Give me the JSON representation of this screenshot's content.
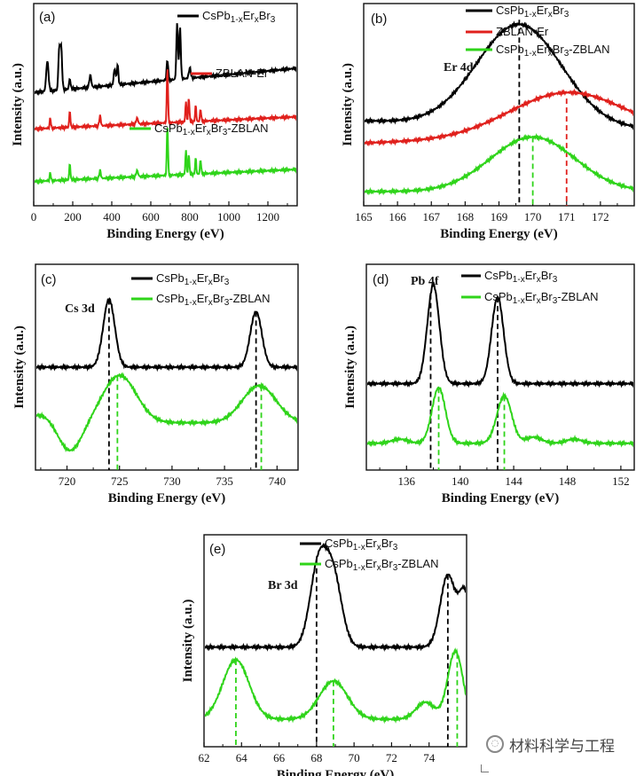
{
  "chart_data": [
    {
      "id": "a",
      "type": "line",
      "panel_label": "(a)",
      "xlabel": "Binding Energy (eV)",
      "ylabel": "Intensity (a.u.)",
      "xlim": [
        0,
        1350
      ],
      "ylim": [
        0,
        1
      ],
      "xticks": [
        0,
        200,
        400,
        600,
        800,
        1000,
        1200
      ],
      "legend_position": "inline",
      "series": [
        {
          "name": "CsPb1-xErxBr3",
          "color": "#000000",
          "baseline": 0.56,
          "rise": 0.12,
          "peaks": [
            [
              70,
              0.15,
              6
            ],
            [
              130,
              0.18,
              4
            ],
            [
              140,
              0.22,
              5
            ],
            [
              185,
              0.05,
              4
            ],
            [
              290,
              0.06,
              5
            ],
            [
              415,
              0.08,
              5
            ],
            [
              430,
              0.1,
              4
            ],
            [
              685,
              0.1,
              4
            ],
            [
              735,
              0.28,
              4
            ],
            [
              750,
              0.25,
              4
            ],
            [
              800,
              0.05,
              5
            ]
          ]
        },
        {
          "name": "ZBLAN-Er",
          "color": "#e0201c",
          "baseline": 0.38,
          "rise": 0.06,
          "peaks": [
            [
              85,
              0.05,
              3
            ],
            [
              185,
              0.08,
              3
            ],
            [
              340,
              0.05,
              4
            ],
            [
              530,
              0.03,
              5
            ],
            [
              685,
              0.28,
              3
            ],
            [
              780,
              0.1,
              3
            ],
            [
              795,
              0.12,
              3
            ],
            [
              830,
              0.08,
              3
            ],
            [
              855,
              0.06,
              3
            ]
          ]
        },
        {
          "name": "CsPb1-xErxBr3-ZBLAN",
          "color": "#2fd41a",
          "baseline": 0.12,
          "rise": 0.06,
          "peaks": [
            [
              85,
              0.04,
              3
            ],
            [
              185,
              0.08,
              3
            ],
            [
              340,
              0.04,
              4
            ],
            [
              530,
              0.03,
              5
            ],
            [
              685,
              0.25,
              3
            ],
            [
              780,
              0.12,
              3
            ],
            [
              795,
              0.1,
              3
            ],
            [
              830,
              0.08,
              3
            ],
            [
              855,
              0.07,
              3
            ]
          ]
        }
      ]
    },
    {
      "id": "b",
      "type": "line",
      "panel_label": "(b)",
      "xlabel": "Binding Energy (eV)",
      "ylabel": "Intensity (a.u.)",
      "xlim": [
        165,
        173
      ],
      "ylim": [
        0,
        1
      ],
      "xticks": [
        165,
        166,
        167,
        168,
        169,
        170,
        171,
        172
      ],
      "annotations": [
        {
          "text": "Er 4d"
        }
      ],
      "legend_position": "top-right",
      "series": [
        {
          "name": "CsPb1-xErxBr3",
          "color": "#000000",
          "baseline": 0.42,
          "rise": -0.04,
          "peaks": [
            [
              169.6,
              0.5,
              1.25
            ]
          ],
          "marker_x": 169.6
        },
        {
          "name": "ZBLAN-Er",
          "color": "#e0201c",
          "baseline": 0.31,
          "rise": 0.04,
          "peaks": [
            [
              171.0,
              0.22,
              1.7
            ]
          ],
          "marker_x": 171.0
        },
        {
          "name": "CsPb1-xErxBr3-ZBLAN",
          "color": "#2fd41a",
          "baseline": 0.07,
          "rise": 0.0,
          "peaks": [
            [
              170.0,
              0.27,
              1.25
            ]
          ],
          "marker_x": 170.0
        }
      ]
    },
    {
      "id": "c",
      "type": "line",
      "panel_label": "(c)",
      "xlabel": "Binding Energy (eV)",
      "ylabel": "Intensity (a.u.)",
      "xlim": [
        717,
        742
      ],
      "ylim": [
        0,
        1
      ],
      "xticks": [
        720,
        725,
        730,
        735,
        740
      ],
      "annotations": [
        {
          "text": "Cs 3d"
        }
      ],
      "legend_position": "top-right",
      "series": [
        {
          "name": "CsPb1-xErxBr3",
          "color": "#000000",
          "baseline": 0.5,
          "rise": 0.0,
          "peaks": [
            [
              724.0,
              0.33,
              0.55
            ],
            [
              738.0,
              0.27,
              0.55
            ]
          ],
          "marker_x": [
            724.0,
            738.0
          ]
        },
        {
          "name": "CsPb1-xErxBr3-ZBLAN",
          "color": "#2fd41a",
          "baseline": 0.23,
          "rise": 0.0,
          "peaks": [
            [
              725.0,
              0.23,
              1.6
            ],
            [
              738.3,
              0.18,
              1.6
            ],
            [
              720.3,
              -0.14,
              1.1
            ],
            [
              717.5,
              0.04,
              1.2
            ]
          ],
          "marker_x": [
            724.8,
            738.5
          ]
        }
      ]
    },
    {
      "id": "d",
      "type": "line",
      "panel_label": "(d)",
      "xlabel": "Binding Energy (eV)",
      "ylabel": "Intensity (a.u.)",
      "xlim": [
        133,
        153
      ],
      "ylim": [
        0,
        1
      ],
      "xticks": [
        136,
        140,
        144,
        148,
        152
      ],
      "annotations": [
        {
          "text": "Pb 4f"
        }
      ],
      "legend_position": "top-right",
      "series": [
        {
          "name": "CsPb1-xErxBr3",
          "color": "#000000",
          "baseline": 0.42,
          "rise": 0.0,
          "peaks": [
            [
              138.0,
              0.48,
              0.45
            ],
            [
              142.8,
              0.42,
              0.45
            ]
          ],
          "marker_x": [
            137.8,
            142.8
          ]
        },
        {
          "name": "CsPb1-xErxBr3-ZBLAN",
          "color": "#2fd41a",
          "baseline": 0.13,
          "rise": 0.0,
          "peaks": [
            [
              138.4,
              0.27,
              0.5
            ],
            [
              143.3,
              0.23,
              0.55
            ],
            [
              145.5,
              0.03,
              0.6
            ],
            [
              148.5,
              0.02,
              0.6
            ],
            [
              135.5,
              0.02,
              0.6
            ]
          ],
          "marker_x": [
            138.4,
            143.3
          ]
        }
      ]
    },
    {
      "id": "e",
      "type": "line",
      "panel_label": "(e)",
      "xlabel": "Binding Energy (eV)",
      "ylabel": "Intensity (a.u.)",
      "xlim": [
        62,
        76
      ],
      "ylim": [
        0,
        1
      ],
      "xticks": [
        62,
        64,
        66,
        68,
        70,
        72,
        74
      ],
      "annotations": [
        {
          "text": "Br 3d"
        }
      ],
      "legend_position": "top-right",
      "series": [
        {
          "name": "CsPb1-xErxBr3",
          "color": "#000000",
          "baseline": 0.47,
          "rise": 0.0,
          "peaks": [
            [
              68.1,
              0.38,
              0.45
            ],
            [
              68.9,
              0.32,
              0.45
            ],
            [
              75.0,
              0.34,
              0.4
            ],
            [
              75.9,
              0.25,
              0.3
            ]
          ],
          "marker_x": [
            68.0,
            75.0
          ]
        },
        {
          "name": "CsPb1-xErxBr3-ZBLAN",
          "color": "#2fd41a",
          "baseline": 0.13,
          "rise": 0.0,
          "peaks": [
            [
              63.7,
              0.28,
              0.7
            ],
            [
              68.9,
              0.18,
              0.75
            ],
            [
              75.4,
              0.32,
              0.4
            ],
            [
              73.8,
              0.08,
              0.5
            ]
          ],
          "marker_x": [
            63.7,
            68.9,
            75.5
          ]
        }
      ]
    }
  ],
  "labels": {
    "legend_a1": {
      "base": "CsPb",
      "s1": "1-x",
      "mid": "Er",
      "s2": "x",
      "tail": "Br",
      "s3": "3",
      "end": ""
    },
    "legend_a2": {
      "base": "ZBLAN-Er",
      "s1": "",
      "mid": "",
      "s2": "",
      "tail": "",
      "s3": "",
      "end": ""
    },
    "legend_a3": {
      "base": "CsPb",
      "s1": "1-x",
      "mid": "Er",
      "s2": "x",
      "tail": "Br",
      "s3": "3",
      "end": "-ZBLAN"
    }
  },
  "watermark": {
    "icon": "wechat-icon",
    "text": "材料科学与工程"
  }
}
